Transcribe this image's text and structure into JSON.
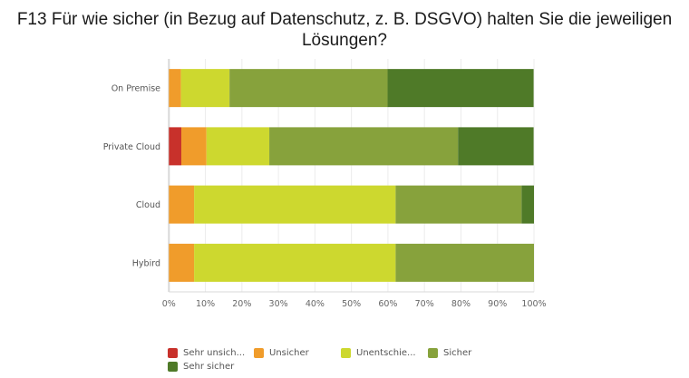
{
  "chart_data": {
    "type": "bar",
    "orientation": "horizontal",
    "stacked": true,
    "title": "F13 Für wie sicher (in Bezug auf Datenschutz, z. B. DSGVO) halten Sie die jeweiligen Lösungen?",
    "xlabel": "",
    "ylabel": "",
    "xlim": [
      0,
      100
    ],
    "x_ticks": [
      "0%",
      "10%",
      "20%",
      "30%",
      "40%",
      "50%",
      "60%",
      "70%",
      "80%",
      "90%",
      "100%"
    ],
    "grid": true,
    "legend_position": "bottom",
    "categories": [
      "On Premise",
      "Private Cloud",
      "Cloud",
      "Hybird"
    ],
    "series": [
      {
        "name": "Sehr unsicher",
        "legend_label": "Sehr unsich...",
        "color": "#c8312b",
        "values": [
          0,
          3.4,
          0,
          0
        ]
      },
      {
        "name": "Unsicher",
        "legend_label": "Unsicher",
        "color": "#f09c2b",
        "values": [
          3.3,
          6.9,
          6.9,
          6.9
        ]
      },
      {
        "name": "Unentschieden",
        "legend_label": "Unentschie...",
        "color": "#cdd82f",
        "values": [
          13.3,
          17.2,
          55.2,
          55.2
        ]
      },
      {
        "name": "Sicher",
        "legend_label": "Sicher",
        "color": "#87a23c",
        "values": [
          43.3,
          51.7,
          34.5,
          37.9
        ]
      },
      {
        "name": "Sehr sicher",
        "legend_label": "Sehr sicher",
        "color": "#4f7a28",
        "values": [
          40.0,
          20.7,
          3.4,
          0
        ]
      }
    ]
  }
}
